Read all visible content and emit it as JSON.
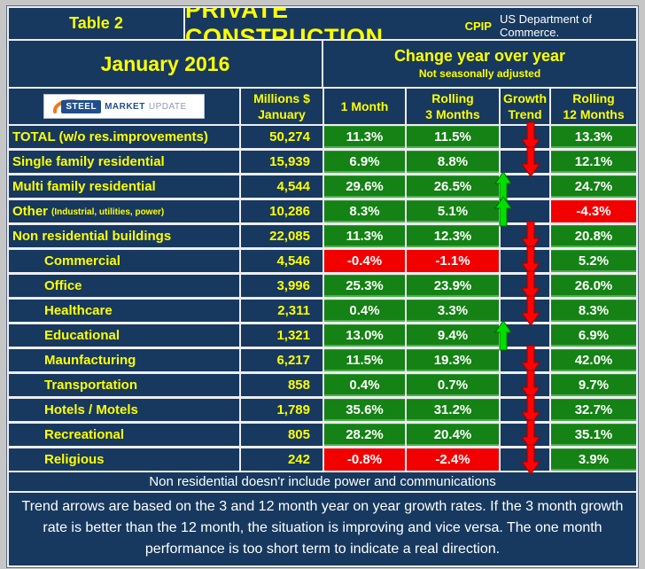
{
  "page": {
    "table_label": "Table 2",
    "title": "PRIVATE CONSTRUCTION",
    "title_suffix": "CPIP",
    "source": "US Department of Commerce.",
    "period": "January 2016",
    "change_header": "Change year over year",
    "change_subheader": "Not seasonally adjusted"
  },
  "logo": {
    "steel": "STEEL",
    "market": "MARKET",
    "update": "UPDATE"
  },
  "columns": {
    "millions_l1": "Millions $",
    "millions_l2": "January",
    "one_month": "1 Month",
    "rolling3_l1": "Rolling",
    "rolling3_l2": "3 Months",
    "trend_l1": "Growth",
    "trend_l2": "Trend",
    "rolling12_l1": "Rolling",
    "rolling12_l2": "12 Months"
  },
  "rows": [
    {
      "label": "TOTAL (w/o res.improvements)",
      "sublabel": "",
      "indent": false,
      "millions": "50,274",
      "m1": "11.3%",
      "m1_state": "g",
      "m3": "11.5%",
      "m3_state": "g",
      "trend": "down",
      "m12": "13.3%",
      "m12_state": "g"
    },
    {
      "label": "Single family residential",
      "sublabel": "",
      "indent": false,
      "millions": "15,939",
      "m1": "6.9%",
      "m1_state": "g",
      "m3": "8.8%",
      "m3_state": "g",
      "trend": "down",
      "m12": "12.1%",
      "m12_state": "g"
    },
    {
      "label": "Multi family residential",
      "sublabel": "",
      "indent": false,
      "millions": "4,544",
      "m1": "29.6%",
      "m1_state": "g",
      "m3": "26.5%",
      "m3_state": "g",
      "trend": "up",
      "m12": "24.7%",
      "m12_state": "g"
    },
    {
      "label": "Other",
      "sublabel": "(Industrial, utilities, power)",
      "indent": false,
      "millions": "10,286",
      "m1": "8.3%",
      "m1_state": "g",
      "m3": "5.1%",
      "m3_state": "g",
      "trend": "up",
      "m12": "-4.3%",
      "m12_state": "r"
    },
    {
      "label": "Non residential buildings",
      "sublabel": "",
      "indent": false,
      "millions": "22,085",
      "m1": "11.3%",
      "m1_state": "g",
      "m3": "12.3%",
      "m3_state": "g",
      "trend": "down",
      "m12": "20.8%",
      "m12_state": "g"
    },
    {
      "label": "Commercial",
      "sublabel": "",
      "indent": true,
      "millions": "4,546",
      "m1": "-0.4%",
      "m1_state": "r",
      "m3": "-1.1%",
      "m3_state": "r",
      "trend": "down",
      "m12": "5.2%",
      "m12_state": "g"
    },
    {
      "label": "Office",
      "sublabel": "",
      "indent": true,
      "millions": "3,996",
      "m1": "25.3%",
      "m1_state": "g",
      "m3": "23.9%",
      "m3_state": "g",
      "trend": "down",
      "m12": "26.0%",
      "m12_state": "g"
    },
    {
      "label": "Healthcare",
      "sublabel": "",
      "indent": true,
      "millions": "2,311",
      "m1": "0.4%",
      "m1_state": "g",
      "m3": "3.3%",
      "m3_state": "g",
      "trend": "down",
      "m12": "8.3%",
      "m12_state": "g"
    },
    {
      "label": "Educational",
      "sublabel": "",
      "indent": true,
      "millions": "1,321",
      "m1": "13.0%",
      "m1_state": "g",
      "m3": "9.4%",
      "m3_state": "g",
      "trend": "up",
      "m12": "6.9%",
      "m12_state": "g"
    },
    {
      "label": "Maunfacturing",
      "sublabel": "",
      "indent": true,
      "millions": "6,217",
      "m1": "11.5%",
      "m1_state": "g",
      "m3": "19.3%",
      "m3_state": "g",
      "trend": "down",
      "m12": "42.0%",
      "m12_state": "g"
    },
    {
      "label": "Transportation",
      "sublabel": "",
      "indent": true,
      "millions": "858",
      "m1": "0.4%",
      "m1_state": "g",
      "m3": "0.7%",
      "m3_state": "g",
      "trend": "down",
      "m12": "9.7%",
      "m12_state": "g"
    },
    {
      "label": "Hotels / Motels",
      "sublabel": "",
      "indent": true,
      "millions": "1,789",
      "m1": "35.6%",
      "m1_state": "g",
      "m3": "31.2%",
      "m3_state": "g",
      "trend": "down",
      "m12": "32.7%",
      "m12_state": "g"
    },
    {
      "label": "Recreational",
      "sublabel": "",
      "indent": true,
      "millions": "805",
      "m1": "28.2%",
      "m1_state": "g",
      "m3": "20.4%",
      "m3_state": "g",
      "trend": "down",
      "m12": "35.1%",
      "m12_state": "g"
    },
    {
      "label": "Religious",
      "sublabel": "",
      "indent": true,
      "millions": "242",
      "m1": "-0.8%",
      "m1_state": "r",
      "m3": "-2.4%",
      "m3_state": "r",
      "trend": "down",
      "m12": "3.9%",
      "m12_state": "g"
    }
  ],
  "footer": {
    "note": "Non residential doesn'r include power and communications",
    "para": "Trend arrows are based on the 3 and 12 month year on year growth rates. If the 3 month growth rate is better than the 12 month, the situation is improving and vice versa. The one month performance is too short term to indicate a real direction."
  },
  "colors": {
    "navy": "#17395F",
    "green": "#148214",
    "red": "#F20000",
    "yellow": "#FFFF00",
    "arrow_down": "#FF0202",
    "arrow_up": "#00DF00",
    "page_bg": "#C6C6C6"
  },
  "chart_data": {
    "type": "table",
    "title": "PRIVATE CONSTRUCTION (CPIP, US Department of Commerce) — January 2016, Change year over year, not seasonally adjusted",
    "categories": [
      "TOTAL (w/o res.improvements)",
      "Single family residential",
      "Multi family residential",
      "Other (Industrial, utilities, power)",
      "Non residential buildings",
      "Commercial",
      "Office",
      "Healthcare",
      "Educational",
      "Maunfacturing",
      "Transportation",
      "Hotels / Motels",
      "Recreational",
      "Religious"
    ],
    "series": [
      {
        "name": "Millions $ January",
        "values": [
          50274,
          15939,
          4544,
          10286,
          22085,
          4546,
          3996,
          2311,
          1321,
          6217,
          858,
          1789,
          805,
          242
        ]
      },
      {
        "name": "1 Month %",
        "values": [
          11.3,
          6.9,
          29.6,
          8.3,
          11.3,
          -0.4,
          25.3,
          0.4,
          13.0,
          11.5,
          0.4,
          35.6,
          28.2,
          -0.8
        ]
      },
      {
        "name": "Rolling 3 Months %",
        "values": [
          11.5,
          8.8,
          26.5,
          5.1,
          12.3,
          -1.1,
          23.9,
          3.3,
          9.4,
          19.3,
          0.7,
          31.2,
          20.4,
          -2.4
        ]
      },
      {
        "name": "Growth Trend",
        "values": [
          "down",
          "down",
          "up",
          "up",
          "down",
          "down",
          "down",
          "down",
          "up",
          "down",
          "down",
          "down",
          "down",
          "down"
        ]
      },
      {
        "name": "Rolling 12 Months %",
        "values": [
          13.3,
          12.1,
          24.7,
          -4.3,
          20.8,
          5.2,
          26.0,
          8.3,
          6.9,
          42.0,
          9.7,
          32.7,
          35.1,
          3.9
        ]
      }
    ]
  }
}
